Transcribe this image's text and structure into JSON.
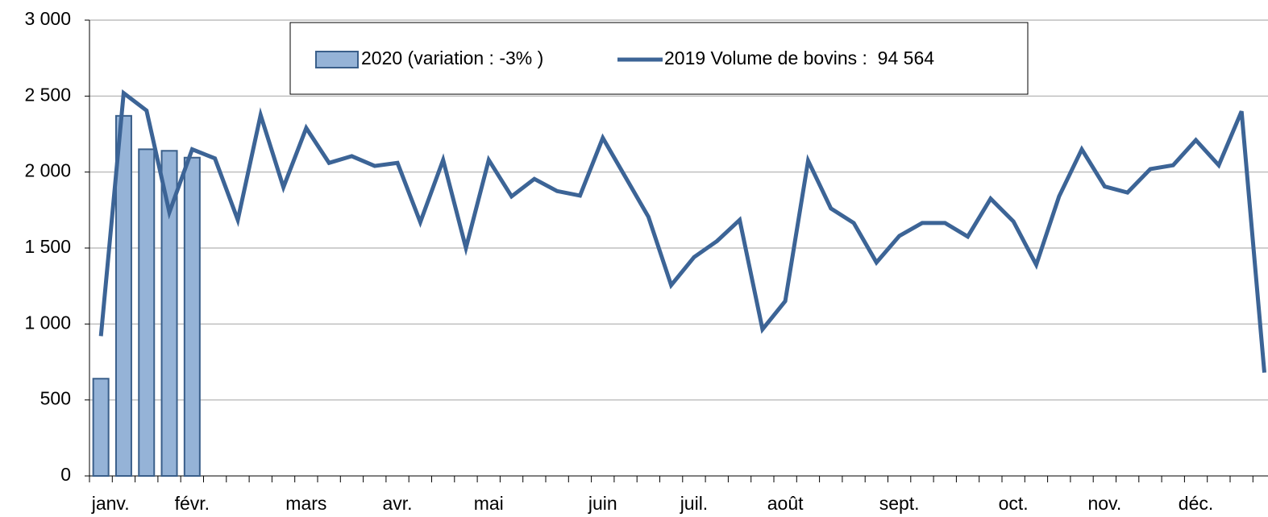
{
  "chart_data": {
    "type": "combo",
    "categories": [
      "janv.",
      null,
      null,
      null,
      "févr.",
      null,
      null,
      null,
      null,
      "mars",
      null,
      null,
      null,
      "avr.",
      null,
      null,
      null,
      "mai",
      null,
      null,
      null,
      null,
      "juin",
      null,
      null,
      null,
      "juil.",
      null,
      null,
      null,
      "août",
      null,
      null,
      null,
      null,
      "sept.",
      null,
      null,
      null,
      null,
      "oct.",
      null,
      null,
      null,
      "nov.",
      null,
      null,
      null,
      "déc.",
      null,
      null,
      null
    ],
    "series": [
      {
        "name": "2020 (variation : -3% )",
        "type": "bar",
        "color": "#95b3d7",
        "edge": "#3a5f8a",
        "values": [
          640,
          2370,
          2150,
          2140,
          2095,
          null,
          null,
          null,
          null,
          null,
          null,
          null,
          null,
          null,
          null,
          null,
          null,
          null,
          null,
          null,
          null,
          null,
          null,
          null,
          null,
          null,
          null,
          null,
          null,
          null,
          null,
          null,
          null,
          null,
          null,
          null,
          null,
          null,
          null,
          null,
          null,
          null,
          null,
          null,
          null,
          null,
          null,
          null,
          null,
          null,
          null,
          null
        ]
      },
      {
        "name": "2019 Volume de bovins :  94 564",
        "type": "line",
        "color": "#3c6496",
        "values": [
          920,
          2520,
          2405,
          1735,
          2150,
          2090,
          1685,
          2375,
          1900,
          2290,
          2060,
          2105,
          2040,
          2060,
          1670,
          2080,
          1500,
          2080,
          1840,
          1955,
          1875,
          1845,
          2225,
          1965,
          1705,
          1255,
          1440,
          1545,
          1685,
          965,
          1150,
          2075,
          1760,
          1665,
          1405,
          1580,
          1665,
          1665,
          1575,
          1825,
          1675,
          1390,
          1840,
          2150,
          1905,
          1865,
          2020,
          2045,
          2210,
          2045,
          2400,
          680
        ]
      }
    ],
    "ylim": [
      0,
      3000
    ],
    "yticks": [
      0,
      500,
      {
        "value": 1000,
        "label": "1 000"
      },
      {
        "value": 1500,
        "label": "1 500"
      },
      {
        "value": 2000,
        "label": "2 000"
      },
      {
        "value": 2500,
        "label": "2 500"
      },
      {
        "value": 3000,
        "label": "3 000"
      }
    ],
    "grid": true,
    "legend": "top"
  }
}
